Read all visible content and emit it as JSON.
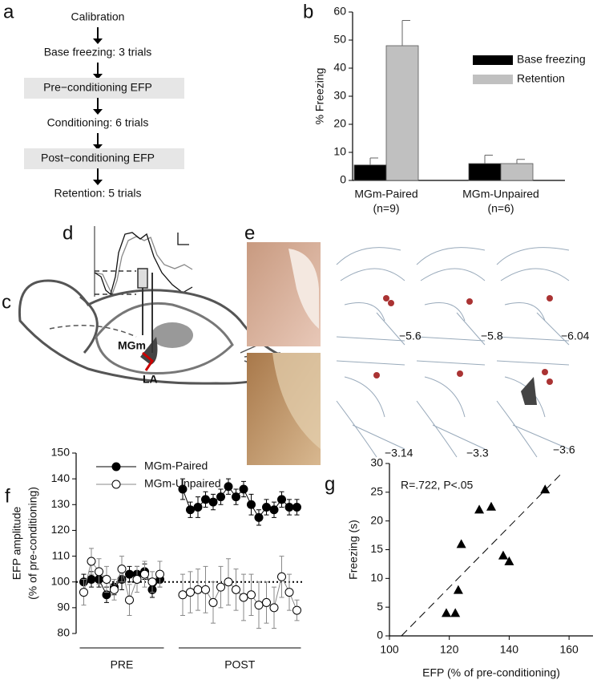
{
  "panel_labels": [
    "a",
    "b",
    "c",
    "d",
    "e",
    "f",
    "g"
  ],
  "flow_steps": [
    {
      "text": "Calibration",
      "boxed": false
    },
    {
      "text": "Base freezing: 3 trials",
      "boxed": false
    },
    {
      "text": "Pre−conditioning EFP",
      "boxed": true
    },
    {
      "text": "Conditioning: 6 trials",
      "boxed": false
    },
    {
      "text": "Post−conditioning EFP",
      "boxed": true
    },
    {
      "text": "Retention: 5 trials",
      "boxed": false
    }
  ],
  "diagram_labels": [
    "MGm",
    "LA"
  ],
  "section_labels": [
    "−5.6",
    "−5.8",
    "−6.04",
    "−3.14",
    "−3.3",
    "−3.6"
  ],
  "chart_data": [
    {
      "type": "bar",
      "ylabel": "% Freezing",
      "categories": [
        "MGm-Paired",
        "MGm-Unpaired"
      ],
      "category_sublabels": [
        "(n=9)",
        "(n=6)"
      ],
      "series": [
        {
          "name": "Base freezing",
          "color": "#000000",
          "values": [
            5.5,
            6
          ],
          "errors": [
            2.5,
            3
          ]
        },
        {
          "name": "Retention",
          "color": "#c0c0c0",
          "values": [
            48,
            6
          ],
          "errors": [
            9,
            1.5
          ]
        }
      ],
      "ylim": [
        0,
        60
      ],
      "yticks": [
        0,
        10,
        20,
        30,
        40,
        50,
        60
      ],
      "legend": "right"
    },
    {
      "type": "line",
      "ylabel": [
        "EFP amplitude",
        "(% of pre-conditioning)"
      ],
      "x": [
        1,
        2,
        3,
        4,
        5,
        6,
        7,
        8,
        9,
        10,
        11,
        12.5,
        14,
        15,
        16,
        17,
        18,
        19,
        20,
        21,
        22,
        23,
        24,
        25,
        26,
        27,
        28,
        29
      ],
      "series": [
        {
          "name": "MGm-Paired",
          "color": "#000000",
          "marker_fill": "#000000",
          "values": [
            100,
            101,
            101,
            95,
            98,
            101,
            103,
            103,
            104,
            97,
            101,
            null,
            136,
            128,
            129,
            132,
            131,
            133,
            137,
            133,
            136,
            130,
            125,
            129,
            128,
            132,
            129,
            129
          ],
          "errors": [
            3,
            3,
            3,
            3,
            3,
            4,
            3,
            3,
            3,
            3,
            3,
            null,
            4,
            3,
            4,
            3,
            3,
            3,
            3,
            3,
            3,
            4,
            3,
            3,
            3,
            3,
            3,
            3
          ]
        },
        {
          "name": "MGm-Unpaired",
          "color": "#888888",
          "marker_fill": "#ffffff",
          "values": [
            96,
            108,
            104,
            101,
            97,
            105,
            93,
            101,
            103,
            100,
            103,
            null,
            95,
            96,
            97,
            97,
            92,
            98,
            100,
            97,
            94,
            95,
            91,
            92,
            90,
            102,
            96,
            89
          ],
          "errors": [
            5,
            5,
            5,
            5,
            4,
            5,
            6,
            5,
            5,
            4,
            5,
            null,
            8,
            8,
            8,
            9,
            8,
            8,
            9,
            8,
            9,
            8,
            9,
            8,
            8,
            8,
            7,
            4
          ]
        }
      ],
      "x_groups": [
        {
          "label": "PRE",
          "from": 1,
          "to": 11
        },
        {
          "label": "POST",
          "from": 14,
          "to": 29
        }
      ],
      "reference_line": 100,
      "xlim": [
        0,
        30
      ],
      "ylim": [
        80,
        150
      ],
      "yticks": [
        80,
        90,
        100,
        110,
        120,
        130,
        140,
        150
      ],
      "legend": "top-left"
    },
    {
      "type": "scatter",
      "xlabel": "EFP (% of pre-conditioning)",
      "ylabel": "Freezing (s)",
      "annotation": "R=.722, P<.05",
      "color": "#000000",
      "x": [
        119,
        122,
        123,
        124,
        130,
        134,
        138,
        140,
        152
      ],
      "values": [
        4,
        4,
        8,
        16,
        22,
        22.5,
        14,
        13,
        25.5
      ],
      "trend_x": [
        104,
        157
      ],
      "trend_y": [
        0,
        28
      ],
      "xlim": [
        100,
        168
      ],
      "xticks": [
        100,
        120,
        140,
        160
      ],
      "ylim": [
        0,
        30
      ],
      "yticks": [
        0,
        5,
        10,
        15,
        20,
        25,
        30
      ]
    }
  ]
}
